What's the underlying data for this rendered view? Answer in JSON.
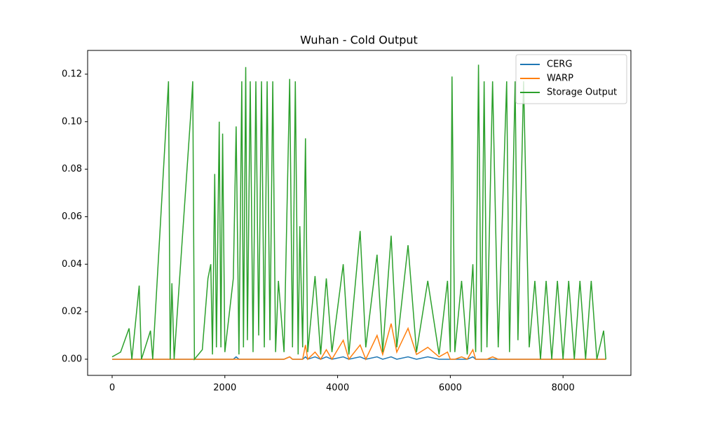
{
  "chart_data": {
    "type": "line",
    "title": "Wuhan - Cold Output",
    "x": [
      0,
      150,
      300,
      350,
      480,
      520,
      680,
      720,
      1000,
      1030,
      1060,
      1100,
      1400,
      1430,
      1460,
      1600,
      1700,
      1750,
      1780,
      1820,
      1850,
      1900,
      1930,
      1960,
      2000,
      2150,
      2200,
      2250,
      2300,
      2330,
      2370,
      2400,
      2450,
      2500,
      2550,
      2600,
      2650,
      2700,
      2750,
      2800,
      2850,
      2900,
      2950,
      3050,
      3150,
      3200,
      3250,
      3300,
      3330,
      3380,
      3430,
      3470,
      3600,
      3700,
      3800,
      3900,
      4100,
      4200,
      4400,
      4500,
      4700,
      4800,
      4950,
      5050,
      5250,
      5400,
      5600,
      5800,
      5950,
      6000,
      6030,
      6080,
      6200,
      6300,
      6400,
      6450,
      6500,
      6550,
      6600,
      6650,
      6750,
      6850,
      7000,
      7050,
      7150,
      7200,
      7300,
      7400,
      7500,
      7600,
      7700,
      7800,
      7900,
      8000,
      8100,
      8200,
      8300,
      8400,
      8500,
      8600,
      8720,
      8760
    ],
    "series": [
      {
        "name": "CERG",
        "color": "#1f77b4",
        "values": [
          0,
          0,
          0,
          0,
          0,
          0,
          0,
          0,
          0,
          0,
          0,
          0,
          0,
          0,
          0,
          0,
          0,
          0,
          0,
          0,
          0,
          0,
          0,
          0,
          0,
          0,
          0.001,
          0,
          0,
          0,
          0,
          0,
          0,
          0,
          0,
          0,
          0,
          0,
          0,
          0,
          0,
          0,
          0,
          0,
          0.001,
          0,
          0,
          0,
          0,
          0,
          0.001,
          0,
          0.001,
          0,
          0.001,
          0,
          0.001,
          0,
          0.001,
          0,
          0.001,
          0,
          0.001,
          0,
          0.001,
          0,
          0.001,
          0,
          0,
          0,
          0,
          0,
          0,
          0,
          0.001,
          0,
          0,
          0,
          0,
          0,
          0,
          0,
          0,
          0,
          0,
          0,
          0,
          0,
          0,
          0,
          0,
          0,
          0,
          0,
          0,
          0,
          0,
          0,
          0,
          0,
          0,
          0
        ]
      },
      {
        "name": "WARP",
        "color": "#ff7f0e",
        "values": [
          0,
          0,
          0,
          0,
          0,
          0,
          0,
          0,
          0,
          0,
          0,
          0,
          0,
          0,
          0,
          0,
          0,
          0,
          0,
          0,
          0,
          0,
          0,
          0,
          0,
          0,
          0,
          0,
          0,
          0,
          0,
          0,
          0,
          0,
          0,
          0,
          0,
          0,
          0,
          0,
          0,
          0,
          0,
          0,
          0.001,
          0,
          0,
          0,
          0,
          0,
          0.006,
          0,
          0.003,
          0,
          0.004,
          0,
          0.008,
          0,
          0.006,
          0,
          0.01,
          0.002,
          0.015,
          0.003,
          0.013,
          0.002,
          0.005,
          0.001,
          0.003,
          0,
          0,
          0,
          0.001,
          0,
          0.004,
          0,
          0,
          0,
          0,
          0,
          0.001,
          0,
          0,
          0,
          0,
          0,
          0,
          0,
          0,
          0,
          0,
          0,
          0,
          0,
          0,
          0,
          0,
          0,
          0,
          0,
          0,
          0
        ]
      },
      {
        "name": "Storage Output",
        "color": "#2ca02c",
        "values": [
          0.001,
          0.003,
          0.013,
          0,
          0.031,
          0,
          0.012,
          0,
          0.117,
          0,
          0.032,
          0,
          0.105,
          0.117,
          0,
          0.004,
          0.034,
          0.04,
          0.002,
          0.078,
          0.005,
          0.1,
          0.005,
          0.095,
          0.003,
          0.034,
          0.098,
          0.002,
          0.117,
          0.005,
          0.123,
          0.008,
          0.117,
          0.003,
          0.117,
          0.01,
          0.117,
          0.005,
          0.117,
          0.008,
          0.117,
          0.003,
          0.033,
          0.003,
          0.118,
          0.005,
          0.117,
          0.002,
          0.056,
          0.005,
          0.093,
          0.003,
          0.035,
          0.002,
          0.034,
          0.003,
          0.04,
          0.002,
          0.054,
          0.005,
          0.044,
          0.003,
          0.052,
          0.005,
          0.048,
          0.003,
          0.033,
          0.002,
          0.033,
          0.003,
          0.119,
          0.003,
          0.033,
          0.002,
          0.04,
          0.003,
          0.124,
          0.003,
          0.117,
          0.005,
          0.117,
          0.005,
          0.117,
          0.003,
          0.117,
          0.008,
          0.117,
          0.005,
          0.033,
          0,
          0.033,
          0,
          0.033,
          0,
          0.033,
          0,
          0.033,
          0,
          0.033,
          0,
          0.012,
          0
        ]
      }
    ],
    "xlim": [
      -435,
      9204
    ],
    "ylim": [
      -0.0068,
      0.13
    ],
    "xticks": [
      0,
      2000,
      4000,
      6000,
      8000
    ],
    "yticks": [
      {
        "value": 0,
        "label": "0.00"
      },
      {
        "value": 0.02,
        "label": "0.02"
      },
      {
        "value": 0.04,
        "label": "0.04"
      },
      {
        "value": 0.06,
        "label": "0.06"
      },
      {
        "value": 0.08,
        "label": "0.08"
      },
      {
        "value": 0.1,
        "label": "0.10"
      },
      {
        "value": 0.12,
        "label": "0.12"
      }
    ],
    "legend": "upper right"
  }
}
